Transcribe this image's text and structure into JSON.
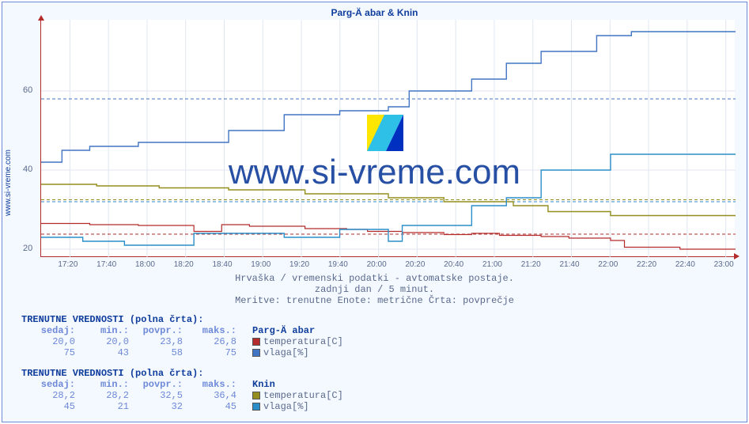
{
  "side_text": "www.si-vreme.com",
  "title": "Parg-Ä abar & Knin",
  "watermark_text": "www.si-vreme.com",
  "subtitle1": "Hrvaška / vremenski podatki - avtomatske postaje.",
  "subtitle2": "zadnji dan / 5 minut.",
  "subtitle3": "Meritve: trenutne  Enote: metrične  Črta: povprečje",
  "axes": {
    "xlim": [
      "17:05",
      "23:00"
    ],
    "ylim": [
      18,
      78
    ],
    "yticks": [
      20,
      40,
      60
    ],
    "ytick_labels": [
      "20",
      "40",
      "60"
    ],
    "xtick_labels": [
      "17:20",
      "17:40",
      "18:00",
      "18:20",
      "18:40",
      "19:00",
      "19:20",
      "19:40",
      "20:00",
      "20:20",
      "20:40",
      "21:00",
      "21:20",
      "21:40",
      "22:00",
      "22:20",
      "22:40",
      "23:00"
    ],
    "grid_color": "#e0e6f0",
    "axis_color": "#b42b2b",
    "bg": "#ffffff"
  },
  "dashed_refs": [
    {
      "y": 23.8,
      "color": "#b42b2b"
    },
    {
      "y": 32.5,
      "color": "#938e1e"
    },
    {
      "y": 32,
      "color": "#2c8ec8"
    },
    {
      "y": 58,
      "color": "#4175c4"
    }
  ],
  "series": [
    {
      "name": "parg-temp",
      "color": "#b42b2b",
      "width": 1.2,
      "data": [
        [
          0,
          26.5
        ],
        [
          5,
          26.5
        ],
        [
          7,
          26.2
        ],
        [
          12,
          26.2
        ],
        [
          14,
          26.0
        ],
        [
          21,
          26.0
        ],
        [
          22,
          24.5
        ],
        [
          26,
          24.5
        ],
        [
          26,
          26.2
        ],
        [
          29,
          26.2
        ],
        [
          30,
          25.8
        ],
        [
          38,
          25.2
        ],
        [
          44,
          25.0
        ],
        [
          47,
          25.0
        ],
        [
          47,
          24.5
        ],
        [
          52,
          24.5
        ],
        [
          52,
          24.2
        ],
        [
          58,
          24.2
        ],
        [
          58,
          23.7
        ],
        [
          62,
          24.0
        ],
        [
          66,
          23.5
        ],
        [
          72,
          23.2
        ],
        [
          76,
          22.8
        ],
        [
          82,
          22.2
        ],
        [
          84,
          22.2
        ],
        [
          84,
          20.5
        ],
        [
          88,
          20.5
        ],
        [
          92,
          20.0
        ],
        [
          100,
          20.0
        ]
      ]
    },
    {
      "name": "parg-vlaga",
      "color": "#4175c4",
      "width": 1.4,
      "data": [
        [
          0,
          42
        ],
        [
          3,
          45
        ],
        [
          7,
          45
        ],
        [
          7,
          46
        ],
        [
          14,
          46
        ],
        [
          14,
          47
        ],
        [
          24,
          47
        ],
        [
          27,
          47
        ],
        [
          27,
          50
        ],
        [
          35,
          50
        ],
        [
          35,
          54
        ],
        [
          43,
          54
        ],
        [
          43,
          55
        ],
        [
          50,
          56
        ],
        [
          53,
          56
        ],
        [
          53,
          60
        ],
        [
          62,
          60
        ],
        [
          62,
          63
        ],
        [
          67,
          63
        ],
        [
          67,
          67
        ],
        [
          72,
          67
        ],
        [
          72,
          70
        ],
        [
          80,
          70
        ],
        [
          80,
          74
        ],
        [
          85,
          75
        ],
        [
          93,
          75
        ],
        [
          100,
          75
        ]
      ]
    },
    {
      "name": "knin-temp",
      "color": "#938e1e",
      "width": 1.4,
      "data": [
        [
          0,
          36.4
        ],
        [
          8,
          36.4
        ],
        [
          8,
          36.0
        ],
        [
          17,
          36.0
        ],
        [
          17,
          35.5
        ],
        [
          27,
          35.5
        ],
        [
          27,
          35.0
        ],
        [
          38,
          35.0
        ],
        [
          38,
          34.0
        ],
        [
          50,
          34.0
        ],
        [
          50,
          33.0
        ],
        [
          58,
          33.0
        ],
        [
          58,
          32.0
        ],
        [
          68,
          31.0
        ],
        [
          73,
          31.0
        ],
        [
          73,
          29.5
        ],
        [
          82,
          29.5
        ],
        [
          82,
          28.5
        ],
        [
          100,
          28.5
        ]
      ]
    },
    {
      "name": "knin-vlaga",
      "color": "#2c8ec8",
      "width": 1.4,
      "data": [
        [
          0,
          23
        ],
        [
          6,
          22
        ],
        [
          12,
          21
        ],
        [
          18,
          21
        ],
        [
          22,
          21
        ],
        [
          22,
          24
        ],
        [
          27,
          24
        ],
        [
          30,
          24
        ],
        [
          35,
          23
        ],
        [
          43,
          23
        ],
        [
          43,
          25
        ],
        [
          50,
          22
        ],
        [
          52,
          22
        ],
        [
          52,
          26
        ],
        [
          62,
          26
        ],
        [
          62,
          31
        ],
        [
          67,
          31
        ],
        [
          67,
          33
        ],
        [
          72,
          33
        ],
        [
          72,
          40
        ],
        [
          82,
          40
        ],
        [
          82,
          44
        ],
        [
          90,
          44
        ],
        [
          100,
          44
        ]
      ]
    }
  ],
  "stats": [
    {
      "header": "TRENUTNE VREDNOSTI (polna črta):",
      "cols": [
        "sedaj:",
        "min.:",
        "povpr.:",
        "maks.:"
      ],
      "station": "Parg-Ä abar",
      "rows": [
        {
          "vals": [
            "20,0",
            "20,0",
            "23,8",
            "26,8"
          ],
          "legend": {
            "color": "#b42b2b",
            "label": "temperatura[C]"
          }
        },
        {
          "vals": [
            "75",
            "43",
            "58",
            "75"
          ],
          "legend": {
            "color": "#4175c4",
            "label": "vlaga[%]"
          }
        }
      ]
    },
    {
      "header": "TRENUTNE VREDNOSTI (polna črta):",
      "cols": [
        "sedaj:",
        "min.:",
        "povpr.:",
        "maks.:"
      ],
      "station": "Knin",
      "rows": [
        {
          "vals": [
            "28,2",
            "28,2",
            "32,5",
            "36,4"
          ],
          "legend": {
            "color": "#938e1e",
            "label": "temperatura[C]"
          }
        },
        {
          "vals": [
            "45",
            "21",
            "32",
            "45"
          ],
          "legend": {
            "color": "#2c8ec8",
            "label": "vlaga[%]"
          }
        }
      ]
    }
  ]
}
